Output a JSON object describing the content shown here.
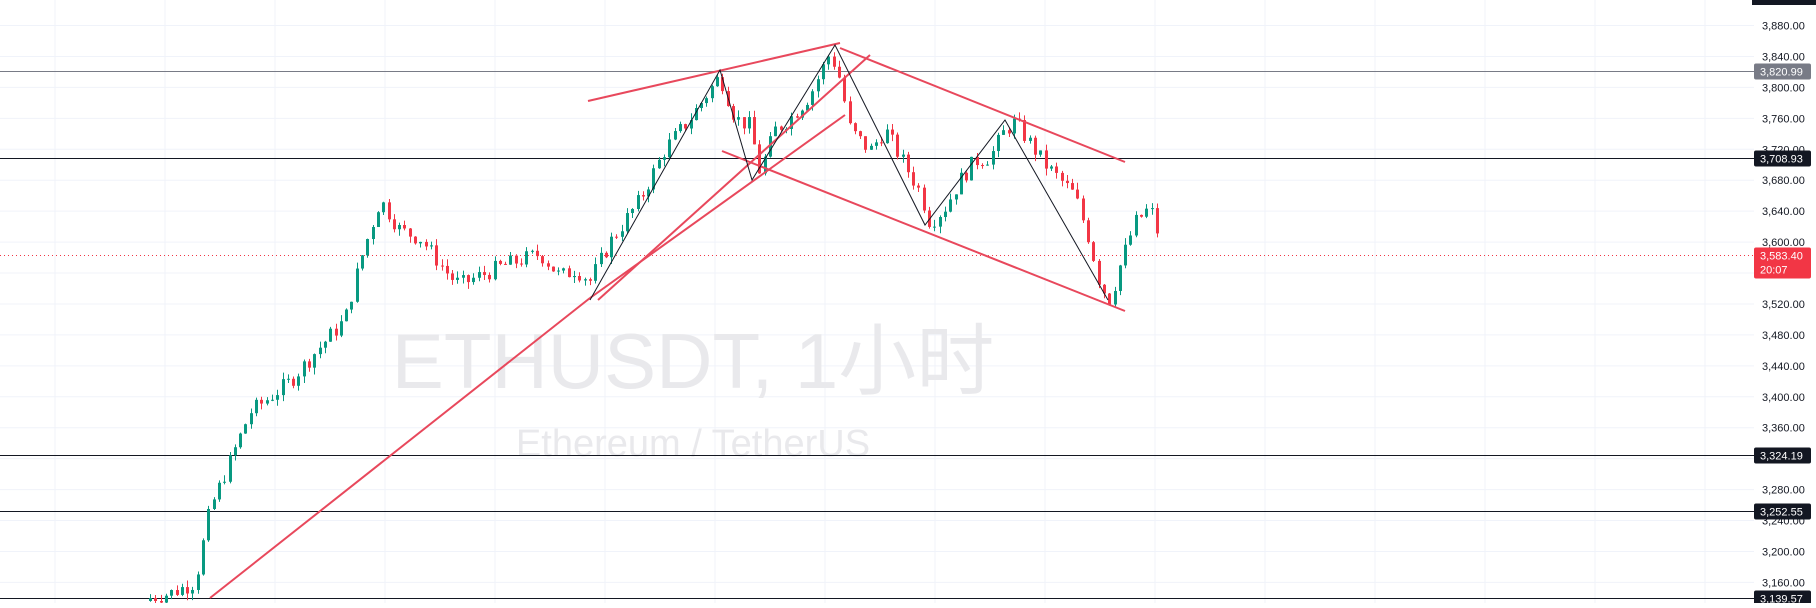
{
  "watermark": {
    "symbol": "ETHUSDT, 1小时",
    "name": "Ethereum / TetherUS"
  },
  "price_axis": {
    "ticks": [
      "3,880.00",
      "3,840.00",
      "3,800.00",
      "3,760.00",
      "3,720.00",
      "3,680.00",
      "3,640.00",
      "3,600.00",
      "3,520.00",
      "3,480.00",
      "3,440.00",
      "3,400.00",
      "3,360.00",
      "3,280.00",
      "3,240.00",
      "3,200.00",
      "3,160.00"
    ],
    "tick_values": [
      3880,
      3840,
      3800,
      3760,
      3720,
      3680,
      3640,
      3600,
      3520,
      3480,
      3440,
      3400,
      3360,
      3280,
      3240,
      3200,
      3160
    ]
  },
  "horizontal_levels": [
    {
      "label": "3,820.99",
      "value": 3820.99,
      "badge_color": "#787b86",
      "line_color": "#787b86"
    },
    {
      "label": "3,708.93",
      "value": 3708.93,
      "badge_color": "#131722",
      "line_color": "#131722"
    },
    {
      "label": "3,324.19",
      "value": 3324.19,
      "badge_color": "#131722",
      "line_color": "#131722"
    },
    {
      "label": "3,252.55",
      "value": 3252.55,
      "badge_color": "#131722",
      "line_color": "#131722"
    },
    {
      "label": "3,139.57",
      "value": 3139.57,
      "badge_color": "#131722",
      "line_color": "#131722"
    }
  ],
  "current_price": {
    "price": "3,583.40",
    "value": 3583.4,
    "countdown": "20:07",
    "badge_color": "#f23645"
  },
  "colors": {
    "up": "#089981",
    "down": "#f23645",
    "trendline": "#e8485c",
    "zigzag": "#131722",
    "grid": "#f0f3fa",
    "axis_text": "#131722",
    "watermark": "#e9e9ec"
  },
  "chart_data": {
    "type": "candlestick",
    "symbol": "ETHUSDT",
    "interval": "1小时",
    "ylim": [
      3136,
      3900
    ],
    "grid": true,
    "candles": []
  }
}
